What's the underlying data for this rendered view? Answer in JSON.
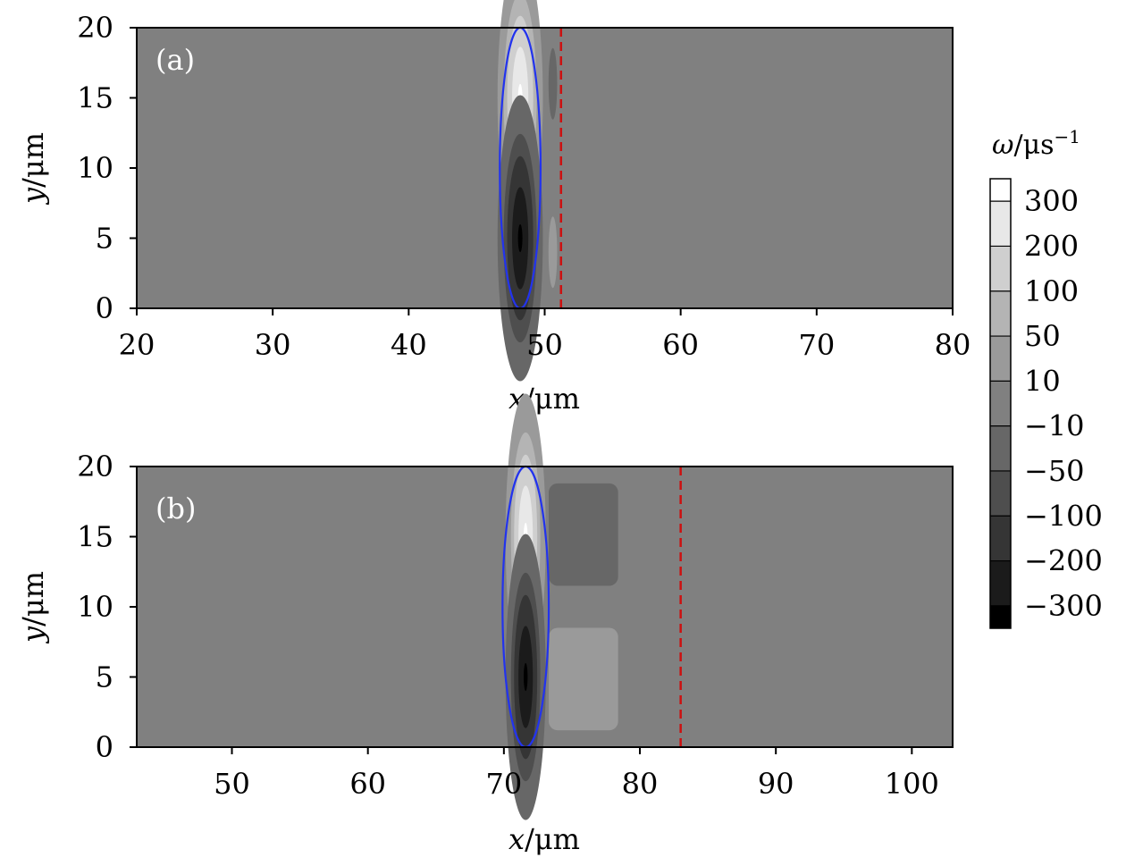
{
  "chart_data": [
    {
      "type": "heatmap",
      "panel_label": "(a)",
      "xlabel_var": "x",
      "ylabel_var": "y",
      "unit": "/μm",
      "xlim": [
        20,
        80
      ],
      "ylim": [
        0,
        20
      ],
      "xticks": [
        "20",
        "30",
        "40",
        "50",
        "60",
        "70",
        "80"
      ],
      "yticks": [
        "0",
        "5",
        "10",
        "15",
        "20"
      ],
      "background_level": 0,
      "vortices": [
        {
          "x": 48.2,
          "y": 15.0,
          "rx": 0.9,
          "ry": 5.5,
          "peak": 310
        },
        {
          "x": 48.2,
          "y": 5.0,
          "rx": 0.9,
          "ry": 5.5,
          "peak": -310
        },
        {
          "x": 50.6,
          "y": 16.0,
          "rx": 0.5,
          "ry": 4.0,
          "peak": -15
        },
        {
          "x": 50.6,
          "y": 4.0,
          "rx": 0.5,
          "ry": 4.0,
          "peak": 15
        }
      ],
      "ellipse": {
        "cx": 48.2,
        "cy": 10.0,
        "rx": 1.5,
        "ry": 10.0,
        "color": "#2233ee"
      },
      "dashed_line_x": 51.2,
      "dashed_line_color": "#cc1111"
    },
    {
      "type": "heatmap",
      "panel_label": "(b)",
      "xlabel_var": "x",
      "ylabel_var": "y",
      "unit": "/μm",
      "xlim": [
        43,
        103
      ],
      "ylim": [
        0,
        20
      ],
      "xticks": [
        "50",
        "60",
        "70",
        "80",
        "90",
        "100"
      ],
      "yticks": [
        "0",
        "5",
        "10",
        "15",
        "20"
      ],
      "background_level": 0,
      "vortices": [
        {
          "x": 71.6,
          "y": 15.0,
          "rx": 0.8,
          "ry": 5.5,
          "peak": 310
        },
        {
          "x": 71.6,
          "y": 5.0,
          "rx": 0.8,
          "ry": 5.5,
          "peak": -310
        }
      ],
      "patches": [
        {
          "x1": 73.3,
          "x2": 78.4,
          "y1": 11.5,
          "y2": 18.8,
          "level": -20
        },
        {
          "x1": 73.3,
          "x2": 78.4,
          "y1": 1.2,
          "y2": 8.5,
          "level": 20
        }
      ],
      "ellipse": {
        "cx": 71.6,
        "cy": 10.0,
        "rx": 1.7,
        "ry": 10.0,
        "color": "#2233ee"
      },
      "dashed_line_x": 83.0,
      "dashed_line_color": "#cc1111"
    }
  ],
  "colorbar": {
    "title_var": "ω",
    "title_unit": "/μs",
    "title_exp": "−1",
    "labels": [
      "300",
      "200",
      "100",
      "50",
      "10",
      "−10",
      "−50",
      "−100",
      "−200",
      "−300"
    ],
    "levels": [
      {
        "min": 300,
        "color": "#ffffff"
      },
      {
        "min": 200,
        "color": "#e8e8e8"
      },
      {
        "min": 100,
        "color": "#cfcfcf"
      },
      {
        "min": 50,
        "color": "#b4b4b4"
      },
      {
        "min": 10,
        "color": "#9a9a9a"
      },
      {
        "min": -10,
        "color": "#808080"
      },
      {
        "min": -50,
        "color": "#676767"
      },
      {
        "min": -100,
        "color": "#4e4e4e"
      },
      {
        "min": -200,
        "color": "#353535"
      },
      {
        "min": -300,
        "color": "#1b1b1b"
      },
      {
        "min": -100000,
        "color": "#000000"
      }
    ]
  }
}
